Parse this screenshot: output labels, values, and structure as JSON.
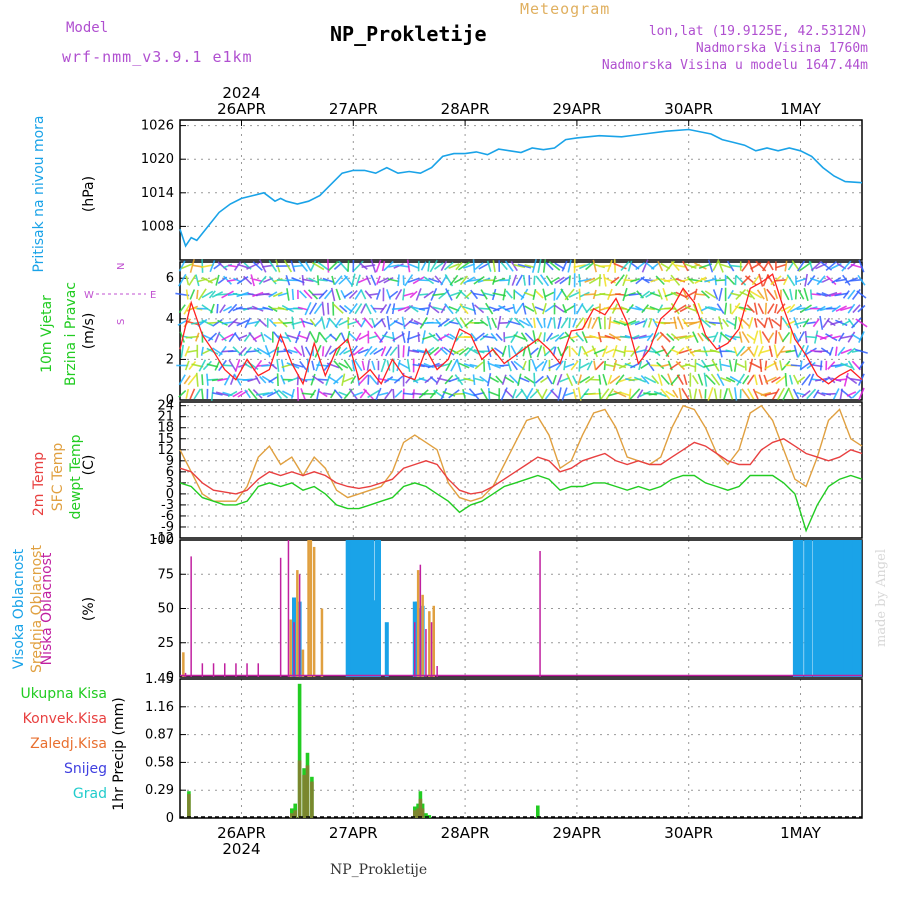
{
  "header": {
    "model_label": "Model",
    "model_name": "wrf-nmm_v3.9.1  e1km",
    "title": "NP_Prokletije",
    "subtitle": "Meteogram",
    "lonlat": "lon,lat (19.9125E, 42.5312N)",
    "elev": "Nadmorska Visina 1760m",
    "elev_model": "Nadmorska Visina u modelu 1647.44m",
    "footer": "NP_Prokletije",
    "credit": "made by Angel"
  },
  "colors": {
    "pressure": "#1aa3e8",
    "t2m": "#e84040",
    "tsfc": "#e0a040",
    "dewpt": "#22cc22",
    "high_cloud": "#1aa3e8",
    "mid_cloud": "#e0a040",
    "low_cloud": "#c020a0",
    "total_precip": "#22cc22",
    "conv_precip": "#e84040",
    "frz_precip": "#e87030",
    "snow": "#4040e0",
    "grad": "#22cccc",
    "grid": "#999999",
    "model_text": "#b050d0"
  },
  "time_axis": {
    "top_year": "2024",
    "bottom_year": "2024",
    "days": [
      "26APR",
      "27APR",
      "28APR",
      "29APR",
      "30APR",
      "1MAY"
    ],
    "x_start": -0.55,
    "x_end": 5.55
  },
  "chart_data": [
    {
      "type": "line",
      "panel": "pressure",
      "ylabel_main": "Pritisak na nivou mora",
      "ylabel_unit": "(hPa)",
      "yticks": [
        1008,
        1014,
        1020,
        1026
      ],
      "ylim": [
        1002,
        1027
      ],
      "series": [
        {
          "x": [
            -0.55,
            -0.5,
            -0.45,
            -0.4,
            -0.3,
            -0.2,
            -0.1,
            0.0,
            0.1,
            0.2,
            0.3,
            0.35,
            0.4,
            0.5,
            0.6,
            0.7,
            0.8,
            0.9,
            1.0,
            1.1,
            1.2,
            1.3,
            1.4,
            1.5,
            1.6,
            1.7,
            1.8,
            1.9,
            2.0,
            2.1,
            2.2,
            2.3,
            2.4,
            2.5,
            2.6,
            2.7,
            2.8,
            2.9,
            3.0,
            3.2,
            3.4,
            3.6,
            3.8,
            4.0,
            4.2,
            4.3,
            4.4,
            4.5,
            4.6,
            4.7,
            4.8,
            4.9,
            5.0,
            5.1,
            5.2,
            5.3,
            5.4,
            5.55
          ],
          "values": [
            1007.5,
            1004.5,
            1006,
            1005.5,
            1008,
            1010.5,
            1012,
            1013,
            1013.5,
            1014,
            1012.5,
            1013,
            1012.5,
            1012,
            1012.5,
            1013.5,
            1015.5,
            1017.5,
            1018,
            1018,
            1017.5,
            1018.5,
            1017.5,
            1017.8,
            1017.5,
            1018.5,
            1020.5,
            1021,
            1021,
            1021.3,
            1020.8,
            1021.8,
            1021.5,
            1021.2,
            1022,
            1021.7,
            1022,
            1023.5,
            1023.8,
            1024.2,
            1024,
            1024.5,
            1025,
            1025.3,
            1024.5,
            1023.5,
            1023,
            1022.5,
            1021.5,
            1022,
            1021.5,
            1022,
            1021.5,
            1020.5,
            1018.5,
            1017,
            1016,
            1015.8
          ]
        }
      ]
    },
    {
      "type": "line",
      "panel": "wind",
      "ylabel_main": "10m Vjetar",
      "ylabel_sub": "Brzina i Pravac",
      "ylabel_unit": "(m/s)",
      "compass": "N",
      "compass_w": "W",
      "compass_e": "E",
      "compass_s": "S",
      "yticks": [
        0,
        2,
        4,
        6
      ],
      "ylim": [
        0,
        6.8
      ],
      "series": [
        {
          "name": "speed",
          "x": [
            -0.55,
            -0.45,
            -0.35,
            -0.25,
            -0.15,
            -0.05,
            0.05,
            0.15,
            0.25,
            0.35,
            0.45,
            0.55,
            0.65,
            0.75,
            0.85,
            0.95,
            1.05,
            1.15,
            1.25,
            1.35,
            1.45,
            1.55,
            1.65,
            1.75,
            1.85,
            1.95,
            2.05,
            2.15,
            2.25,
            2.35,
            2.45,
            2.55,
            2.65,
            2.75,
            2.85,
            2.95,
            3.05,
            3.15,
            3.25,
            3.35,
            3.45,
            3.55,
            3.65,
            3.75,
            3.85,
            3.95,
            4.05,
            4.15,
            4.25,
            4.35,
            4.45,
            4.55,
            4.65,
            4.75,
            4.85,
            4.95,
            5.05,
            5.15,
            5.25,
            5.35,
            5.45,
            5.55
          ],
          "values": [
            2.5,
            4.8,
            3.2,
            2.4,
            1.5,
            1.0,
            2.0,
            1.2,
            1.5,
            3.2,
            1.8,
            0.8,
            2.8,
            1.2,
            2.5,
            3.0,
            1.0,
            1.5,
            0.8,
            2.0,
            1.2,
            1.0,
            2.5,
            1.5,
            2.0,
            3.5,
            3.2,
            2.0,
            2.5,
            1.8,
            2.2,
            2.6,
            3.0,
            2.5,
            1.8,
            3.4,
            3.5,
            4.5,
            4.2,
            5.0,
            3.8,
            1.8,
            2.5,
            4.0,
            4.5,
            5.5,
            4.8,
            3.2,
            2.5,
            2.8,
            3.5,
            5.5,
            5.8,
            6.2,
            4.5,
            3.0,
            2.2,
            1.2,
            0.8,
            1.2,
            1.5,
            1.0
          ]
        }
      ]
    },
    {
      "type": "line",
      "panel": "temperature",
      "ylabel_t2m": "2m Temp",
      "ylabel_tsfc": "SFC Temp",
      "ylabel_dewpt": "dewpt Temp",
      "ylabel_unit": "(C)",
      "yticks": [
        -12,
        -9,
        -6,
        -3,
        0,
        3,
        6,
        9,
        12,
        15,
        18,
        21,
        24
      ],
      "ylim": [
        -12,
        25
      ],
      "series": [
        {
          "name": "2m Temp",
          "x": [
            -0.55,
            -0.45,
            -0.35,
            -0.25,
            -0.15,
            -0.05,
            0.05,
            0.15,
            0.25,
            0.35,
            0.45,
            0.55,
            0.65,
            0.75,
            0.85,
            0.95,
            1.05,
            1.15,
            1.25,
            1.35,
            1.45,
            1.55,
            1.65,
            1.75,
            1.85,
            1.95,
            2.05,
            2.15,
            2.25,
            2.35,
            2.45,
            2.55,
            2.65,
            2.75,
            2.85,
            2.95,
            3.05,
            3.15,
            3.25,
            3.35,
            3.45,
            3.55,
            3.65,
            3.75,
            3.85,
            3.95,
            4.05,
            4.15,
            4.25,
            4.35,
            4.45,
            4.55,
            4.65,
            4.75,
            4.85,
            4.95,
            5.05,
            5.15,
            5.25,
            5.35,
            5.45,
            5.55
          ],
          "values": [
            7,
            6,
            3,
            1,
            0.5,
            0,
            1,
            4,
            6,
            5,
            6,
            5,
            6,
            5,
            3,
            2,
            1.5,
            2,
            3,
            4,
            7,
            8,
            9,
            8,
            4,
            1,
            0,
            0.5,
            2,
            4,
            6,
            8,
            10,
            9,
            6,
            7,
            9,
            10,
            11,
            9,
            8,
            9,
            8,
            8,
            10,
            12,
            14,
            13,
            11,
            9,
            8,
            8,
            12,
            14,
            15,
            13,
            11,
            10,
            9,
            10,
            12,
            11
          ]
        },
        {
          "name": "SFC Temp",
          "x": [
            -0.55,
            -0.45,
            -0.35,
            -0.25,
            -0.15,
            -0.05,
            0.05,
            0.15,
            0.25,
            0.35,
            0.45,
            0.55,
            0.65,
            0.75,
            0.85,
            0.95,
            1.05,
            1.15,
            1.25,
            1.35,
            1.45,
            1.55,
            1.65,
            1.75,
            1.85,
            1.95,
            2.05,
            2.15,
            2.25,
            2.35,
            2.45,
            2.55,
            2.65,
            2.75,
            2.85,
            2.95,
            3.05,
            3.15,
            3.25,
            3.35,
            3.45,
            3.55,
            3.65,
            3.75,
            3.85,
            3.95,
            4.05,
            4.15,
            4.25,
            4.35,
            4.45,
            4.55,
            4.65,
            4.75,
            4.85,
            4.95,
            5.05,
            5.15,
            5.25,
            5.35,
            5.45,
            5.55
          ],
          "values": [
            12,
            6,
            0,
            -2,
            -2,
            -2,
            2,
            10,
            13,
            8,
            10,
            5,
            10,
            7,
            1,
            -1,
            0,
            1,
            2,
            6,
            14,
            16,
            14,
            12,
            3,
            -1,
            -2,
            -1,
            2,
            8,
            14,
            20,
            21,
            16,
            7,
            9,
            16,
            22,
            23,
            18,
            10,
            9,
            8,
            10,
            18,
            24,
            23,
            18,
            11,
            8,
            12,
            22,
            24,
            20,
            12,
            4,
            2,
            10,
            20,
            23,
            15,
            13
          ]
        },
        {
          "name": "dewpt Temp",
          "x": [
            -0.55,
            -0.45,
            -0.35,
            -0.25,
            -0.15,
            -0.05,
            0.05,
            0.15,
            0.25,
            0.35,
            0.45,
            0.55,
            0.65,
            0.75,
            0.85,
            0.95,
            1.05,
            1.15,
            1.25,
            1.35,
            1.45,
            1.55,
            1.65,
            1.75,
            1.85,
            1.95,
            2.05,
            2.15,
            2.25,
            2.35,
            2.45,
            2.55,
            2.65,
            2.75,
            2.85,
            2.95,
            3.05,
            3.15,
            3.25,
            3.35,
            3.45,
            3.55,
            3.65,
            3.75,
            3.85,
            3.95,
            4.05,
            4.15,
            4.25,
            4.35,
            4.45,
            4.55,
            4.65,
            4.75,
            4.85,
            4.95,
            5.05,
            5.15,
            5.25,
            5.35,
            5.45,
            5.55
          ],
          "values": [
            3,
            2,
            -1,
            -2,
            -3,
            -3,
            -2,
            2,
            3,
            2,
            3,
            1,
            2,
            0,
            -3,
            -4,
            -4,
            -3,
            -2,
            -1,
            2,
            3,
            2,
            0,
            -2,
            -5,
            -3,
            -2,
            0,
            2,
            3,
            4,
            5,
            4,
            1,
            2,
            2,
            3,
            3,
            2,
            1,
            2,
            1,
            2,
            4,
            5,
            5,
            3,
            2,
            1,
            2,
            5,
            5,
            5,
            3,
            0,
            -10,
            -3,
            2,
            4,
            5,
            4
          ]
        }
      ]
    },
    {
      "type": "bar",
      "panel": "cloud",
      "ylabel_high": "Visoka Oblacnost",
      "ylabel_mid": "Srednja Oblacnost",
      "ylabel_low": "Niska Oblacnost",
      "ylabel_unit": "(%)",
      "yticks": [
        0,
        25,
        50,
        75,
        100
      ],
      "ylim": [
        0,
        100
      ],
      "series": [
        {
          "name": "Niska",
          "x": [
            -0.5,
            -0.45,
            -0.35,
            -0.25,
            -0.15,
            -0.05,
            0.05,
            0.15,
            0.35,
            0.42,
            0.47,
            0.52,
            1.55,
            1.6,
            1.65,
            1.7,
            1.75,
            2.67
          ],
          "values": [
            3,
            88,
            10,
            10,
            10,
            10,
            10,
            10,
            87,
            100,
            40,
            75,
            40,
            82,
            35,
            40,
            8,
            92
          ]
        },
        {
          "name": "Srednja",
          "x": [
            -0.52,
            0.44,
            0.5,
            0.55,
            0.6,
            0.62,
            0.65,
            0.72,
            1.58,
            1.62,
            1.68,
            1.72
          ],
          "values": [
            18,
            42,
            78,
            20,
            100,
            100,
            95,
            50,
            78,
            60,
            48,
            52
          ]
        },
        {
          "name": "Visoka",
          "x": [
            0.47,
            0.52,
            0.95,
            0.97,
            0.99,
            1.01,
            1.03,
            1.05,
            1.07,
            1.09,
            1.11,
            1.13,
            1.15,
            1.17,
            1.19,
            1.21,
            1.23,
            1.3,
            1.55,
            1.57,
            1.6,
            1.62,
            4.95,
            4.97,
            4.99,
            5.01,
            5.05,
            5.07,
            5.09,
            5.13,
            5.15,
            5.17,
            5.2,
            5.22,
            5.25,
            5.28,
            5.3,
            5.33,
            5.35,
            5.38,
            5.4,
            5.43,
            5.45,
            5.48,
            5.5,
            5.53
          ],
          "values": [
            58,
            55,
            100,
            100,
            100,
            100,
            100,
            100,
            100,
            100,
            100,
            100,
            100,
            100,
            56,
            100,
            100,
            40,
            55,
            55,
            50,
            52,
            100,
            100,
            100,
            100,
            100,
            100,
            100,
            100,
            100,
            100,
            100,
            100,
            100,
            100,
            100,
            100,
            100,
            100,
            100,
            100,
            100,
            100,
            100,
            100
          ]
        }
      ]
    },
    {
      "type": "bar",
      "panel": "precip",
      "legend": [
        "Ukupna Kisa",
        "Konvek.Kisa",
        "Zaledj.Kisa",
        "Snijeg",
        "Grad"
      ],
      "ylabel_unit": "1hr Precip (mm)",
      "yticks": [
        0,
        0.29,
        0.58,
        0.87,
        1.16,
        1.45
      ],
      "ylim": [
        0,
        1.45
      ],
      "series": [
        {
          "name": "Ukupna Kisa",
          "x": [
            -0.47,
            0.45,
            0.48,
            0.52,
            0.56,
            0.59,
            0.63,
            1.55,
            1.58,
            1.6,
            1.62,
            1.65,
            1.68,
            2.65
          ],
          "values": [
            0.28,
            0.1,
            0.15,
            1.4,
            0.52,
            0.68,
            0.43,
            0.12,
            0.15,
            0.28,
            0.15,
            0.05,
            0.03,
            0.13
          ]
        },
        {
          "name": "Konvek.Kisa",
          "x": [
            -0.47,
            0.45,
            0.48,
            0.52,
            0.56,
            0.59,
            0.63,
            1.55,
            1.58,
            1.6,
            1.62
          ],
          "values": [
            0.25,
            0.05,
            0.08,
            0.6,
            0.45,
            0.55,
            0.38,
            0.08,
            0.1,
            0.2,
            0.1
          ]
        }
      ]
    }
  ]
}
